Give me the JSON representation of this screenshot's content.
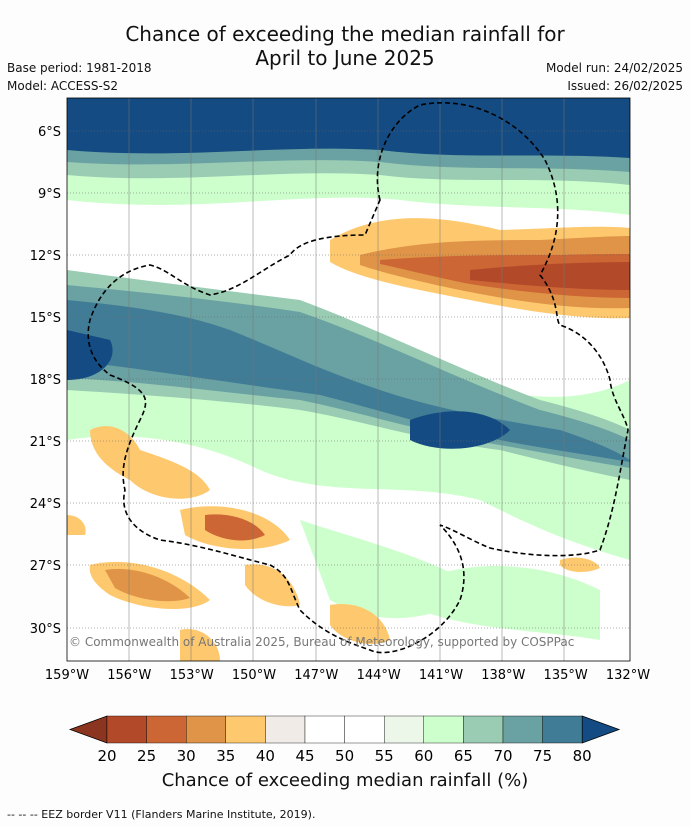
{
  "title_line1": "Chance of exceeding the median rainfall for",
  "title_line2": "April to June 2025",
  "base_period": "Base period: 1981-2018",
  "model": "Model: ACCESS-S2",
  "model_run": "Model run: 24/02/2025",
  "issued": "Issued: 26/02/2025",
  "copyright": "© Commonwealth of Australia 2025, Bureau of Meteorology, supported by COSPPac",
  "lat_labels": [
    "6°S",
    "9°S",
    "12°S",
    "15°S",
    "18°S",
    "21°S",
    "24°S",
    "27°S",
    "30°S"
  ],
  "lon_labels": [
    "159°W",
    "156°W",
    "153°W",
    "150°W",
    "147°W",
    "144°W",
    "141°W",
    "138°W",
    "135°W",
    "132°W"
  ],
  "colorbar": {
    "title": "Chance of exceeding median rainfall (%)",
    "ticks": [
      "20",
      "25",
      "30",
      "35",
      "40",
      "45",
      "50",
      "55",
      "60",
      "65",
      "70",
      "75",
      "80"
    ],
    "colors": [
      "#8b3520",
      "#b24a2a",
      "#cc6634",
      "#e09447",
      "#fec96e",
      "#f0ebe6",
      "#ffffff",
      "#ffffff",
      "#ecf7ea",
      "#ccffcc",
      "#99ccb3",
      "#6aa1a2",
      "#417c96",
      "#134b82"
    ]
  },
  "footer": "--  --  -- EEZ border V11 (Flanders Marine Institute, 2019)."
}
